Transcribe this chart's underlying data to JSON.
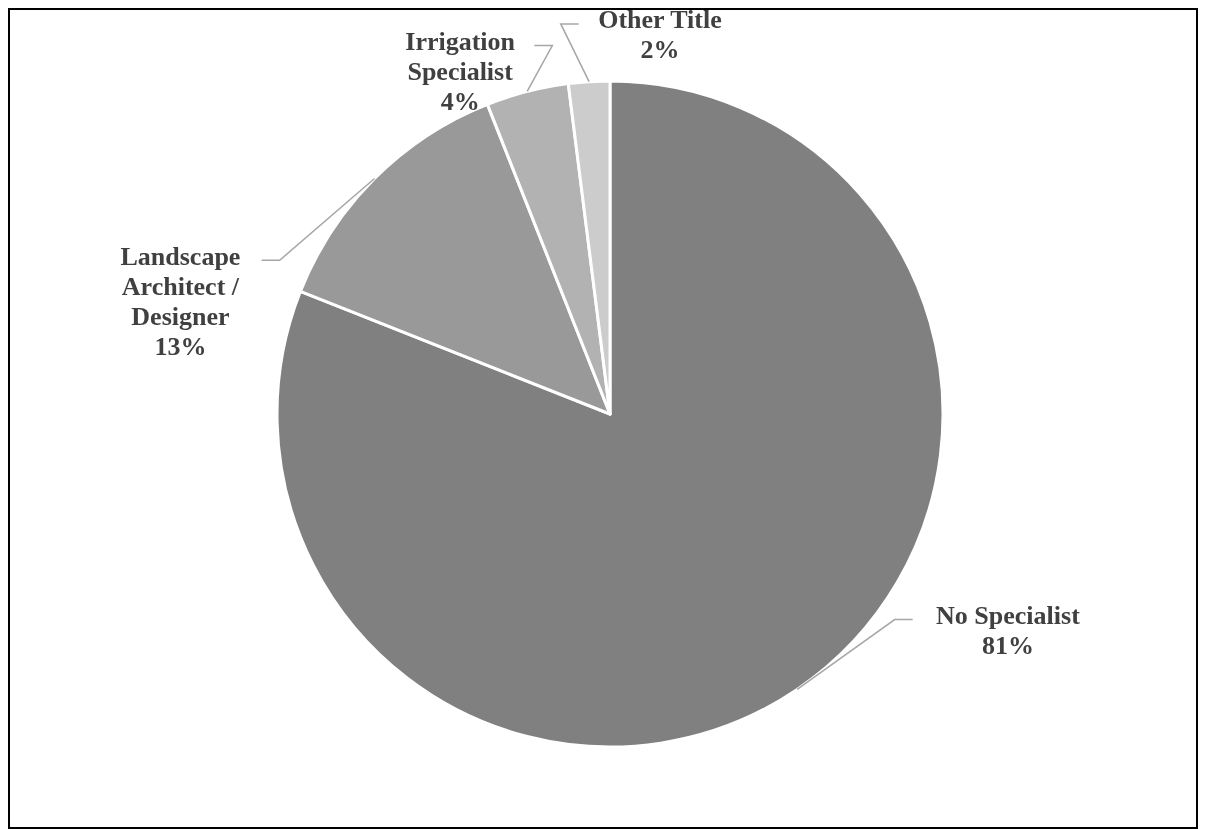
{
  "chart_data": {
    "type": "pie",
    "categories": [
      "No Specialist",
      "Landscape Architect / Designer",
      "Irrigation Specialist",
      "Other Title"
    ],
    "values": [
      81,
      13,
      4,
      2
    ],
    "colors": [
      "#808080",
      "#999999",
      "#b2b2b2",
      "#cccccc"
    ],
    "value_labels": [
      "81%",
      "13%",
      "4%",
      "2%"
    ]
  }
}
